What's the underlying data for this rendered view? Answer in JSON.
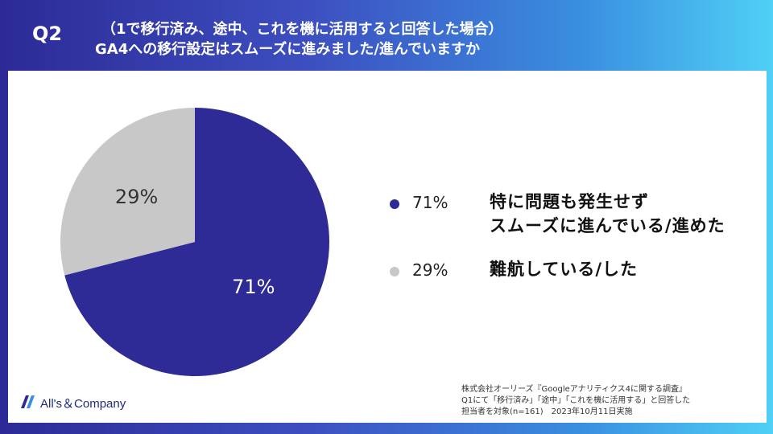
{
  "header": {
    "question_number": "Q2",
    "title_line1": "（1で移行済み、途中、これを機に活用すると回答した場合）",
    "title_line2": "GA4への移行設定はスムーズに進みました/進んでいますか"
  },
  "chart_data": {
    "type": "pie",
    "slices": [
      {
        "label": "特に問題も発生せずスムーズに進んでいる/進めた",
        "value": 71,
        "display": "71%",
        "color": "#2e2a96"
      },
      {
        "label": "難航している/した",
        "value": 29,
        "display": "29%",
        "color": "#c8c8c8"
      }
    ],
    "legend": [
      {
        "pct": "71%",
        "line1": "特に問題も発生せず",
        "line2": "スムーズに進んでいる/進めた",
        "color": "#2e2a96"
      },
      {
        "pct": "29%",
        "line1": "難航している/した",
        "line2": "",
        "color": "#c8c8c8"
      }
    ],
    "legend_position": "right"
  },
  "footer": {
    "company": "All's＆Company",
    "note_line1": "株式会社オーリーズ『Googleアナリティクス4に関する調査』",
    "note_line2": "Q1にて「移行済み」「途中」「これを機に活用する」と回答した",
    "note_line3": "担当者を対象(n=161)　2023年10月11日実施"
  },
  "colors": {
    "primary": "#2e2a96",
    "secondary": "#c8c8c8"
  }
}
